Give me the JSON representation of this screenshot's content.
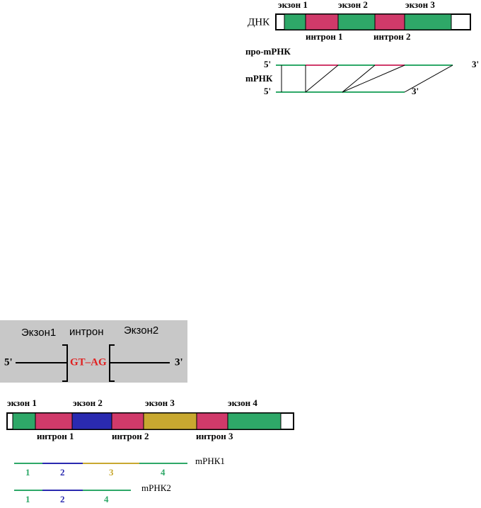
{
  "top_diagram": {
    "exon_labels": [
      "экзон 1",
      "экзон 2",
      "экзон 3"
    ],
    "dna_label": "ДНК",
    "intron_labels": [
      "интрон 1",
      "интрон 2"
    ],
    "pre_mrna_label": "про-mРНК",
    "mrna_label": "mРНК",
    "pre_mrna_ends": [
      "5'",
      "3'"
    ],
    "mrna_ends": [
      "5'",
      "3'"
    ]
  },
  "splice_diagram": {
    "exon_labels": [
      "Экзон1",
      "Экзон2"
    ],
    "intron_label": "интрон",
    "ends": [
      "5'",
      "3'"
    ],
    "splice_sites": "GT–AG"
  },
  "alternative_splicing": {
    "exon_labels": [
      "экзон 1",
      "экзон 2",
      "экзон 3",
      "экзон 4"
    ],
    "intron_labels": [
      "интрон 1",
      "интрон 2",
      "интрон 3"
    ],
    "mrna1": {
      "label": "mРНК1",
      "segments": [
        "1",
        "2",
        "3",
        "4"
      ]
    },
    "mrna2": {
      "label": "mРНК2",
      "segments": [
        "1",
        "2",
        "4"
      ]
    }
  }
}
